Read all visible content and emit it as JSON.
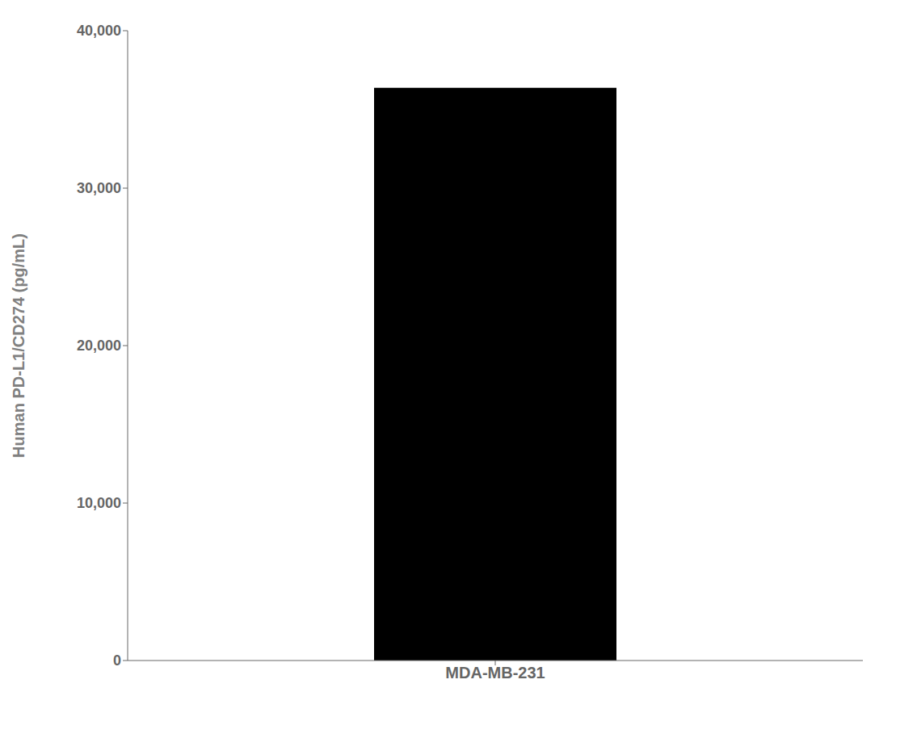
{
  "chart_data": {
    "type": "bar",
    "categories": [
      "MDA-MB-231"
    ],
    "values": [
      36368.3
    ],
    "color": "#000000",
    "ylabel": "Human PD-L1/CD274 (pg/mL)",
    "ylim": [
      0,
      40000
    ],
    "yticks": [
      0,
      {
        "value": 10000,
        "label": "10,000"
      },
      {
        "value": 20000,
        "label": "20,000"
      },
      {
        "value": 30000,
        "label": "30,000"
      },
      {
        "value": 40000,
        "label": "40,000"
      }
    ],
    "grid": false
  }
}
